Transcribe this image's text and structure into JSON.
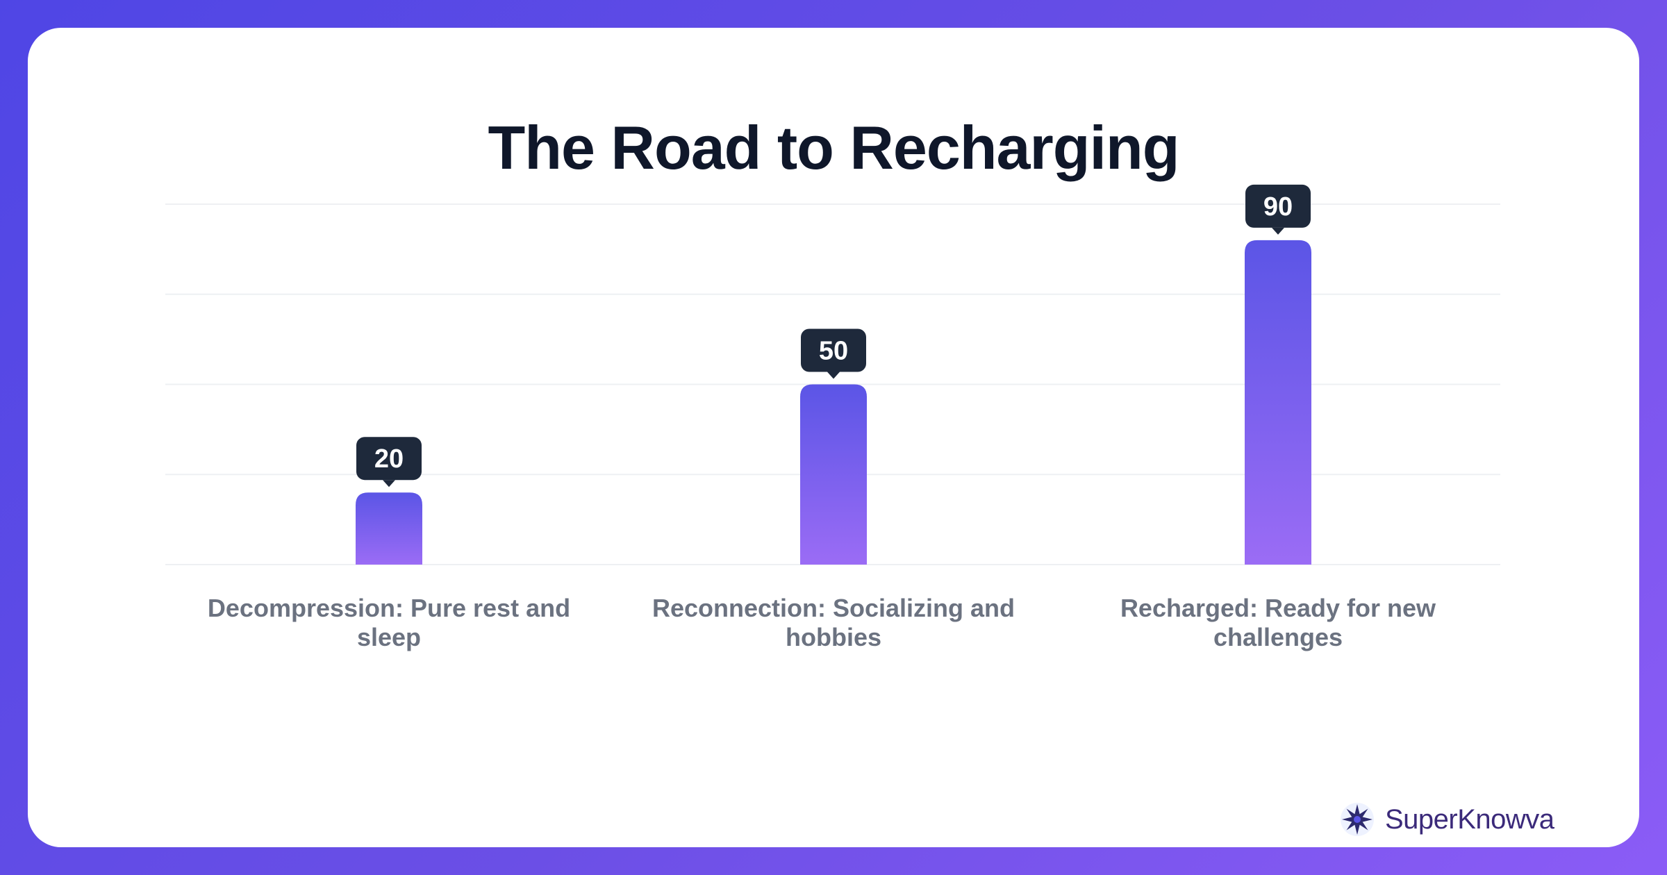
{
  "chart_data": {
    "type": "bar",
    "title": "The Road to Recharging",
    "categories": [
      [
        "Decompression: Pure rest and",
        "sleep"
      ],
      [
        "Reconnection: Socializing and",
        "hobbies"
      ],
      [
        "Recharged: Ready for new",
        "challenges"
      ]
    ],
    "values": [
      20,
      50,
      90
    ],
    "ylim": [
      0,
      100
    ],
    "grid": true,
    "colors": {
      "bar_top": "#5b55e6",
      "bar_bottom": "#9b6cf5",
      "label_bg": "#1e293b",
      "label_text": "#ffffff",
      "gridline": "#eef0f3",
      "category_text": "#6b7280"
    }
  },
  "brand": {
    "name": "SuperKnowva",
    "icon": "starburst-logo-icon"
  }
}
